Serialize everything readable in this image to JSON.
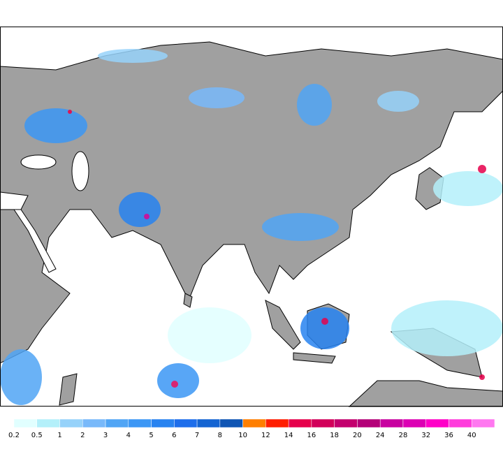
{
  "colorbar": {
    "levels": [
      0.2,
      0.5,
      1,
      2,
      3,
      4,
      5,
      6,
      7,
      8,
      10,
      12,
      14,
      16,
      18,
      20,
      24,
      28,
      32,
      36,
      40
    ],
    "colors": [
      "#e1ffff",
      "#b4f0fa",
      "#96d2fa",
      "#78b9fa",
      "#50a5f5",
      "#3c97f5",
      "#2883f0",
      "#1e6eeb",
      "#1464d2",
      "#0f55b4",
      "#ff7f00",
      "#ff1e00",
      "#e6004b",
      "#d2005a",
      "#c3006e",
      "#b40078",
      "#c800a0",
      "#dc00b4",
      "#ff00c8",
      "#ff3cdc",
      "#ff78f0"
    ]
  }
}
